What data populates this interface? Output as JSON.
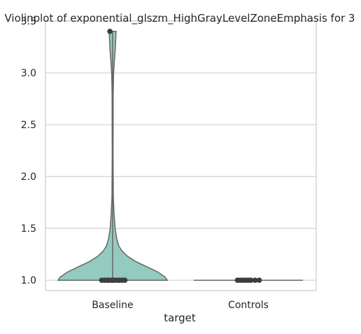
{
  "chart_data": {
    "type": "violin",
    "title": "Violinplot of exponential_glszm_HighGrayLevelZoneEmphasis for 3",
    "xlabel": "target",
    "ylabel": "",
    "categories": [
      "Baseline",
      "Controls"
    ],
    "ylim": [
      0.9,
      3.5
    ],
    "yticks": [
      1.0,
      1.5,
      2.0,
      2.5,
      3.0,
      3.5
    ],
    "ytick_labels": [
      "1.0",
      "1.5",
      "2.0",
      "2.5",
      "3.0",
      "3.5"
    ],
    "grid": true,
    "legend": "none",
    "colors": {
      "violin_fill": "#93cbbf",
      "violin_edge": "#666666",
      "points": "#3d3d3d",
      "grid": "#d0d0d0",
      "frame": "#cccccc"
    },
    "violins": [
      {
        "category": "Baseline",
        "density_profile": [
          {
            "y": 1.0,
            "half_width": 0.4
          },
          {
            "y": 1.03,
            "half_width": 0.385
          },
          {
            "y": 1.08,
            "half_width": 0.33
          },
          {
            "y": 1.13,
            "half_width": 0.25
          },
          {
            "y": 1.18,
            "half_width": 0.17
          },
          {
            "y": 1.23,
            "half_width": 0.11
          },
          {
            "y": 1.28,
            "half_width": 0.07
          },
          {
            "y": 1.33,
            "half_width": 0.045
          },
          {
            "y": 1.4,
            "half_width": 0.03
          },
          {
            "y": 1.5,
            "half_width": 0.018
          },
          {
            "y": 1.65,
            "half_width": 0.01
          },
          {
            "y": 1.8,
            "half_width": 0.005
          },
          {
            "y": 2.2,
            "half_width": 0.003
          },
          {
            "y": 2.8,
            "half_width": 0.004
          },
          {
            "y": 3.0,
            "half_width": 0.007
          },
          {
            "y": 3.1,
            "half_width": 0.012
          },
          {
            "y": 3.2,
            "half_width": 0.018
          },
          {
            "y": 3.3,
            "half_width": 0.022
          },
          {
            "y": 3.4,
            "half_width": 0.025
          }
        ],
        "points": [
          1.0,
          1.0,
          1.0,
          1.0,
          1.0,
          1.0,
          1.0,
          1.0,
          1.0,
          1.0,
          1.0,
          3.4
        ],
        "point_offsets": [
          -0.08,
          -0.06,
          -0.04,
          -0.03,
          -0.01,
          0.0,
          0.01,
          0.03,
          0.05,
          0.07,
          0.09,
          -0.02
        ]
      },
      {
        "category": "Controls",
        "density_profile": [
          {
            "y": 1.0,
            "half_width": 0.4
          }
        ],
        "points": [
          1.0,
          1.0,
          1.0,
          1.0,
          1.0,
          1.0,
          1.0,
          1.0
        ],
        "point_offsets": [
          -0.08,
          -0.06,
          -0.04,
          -0.02,
          0.0,
          0.02,
          0.05,
          0.08
        ]
      }
    ]
  }
}
